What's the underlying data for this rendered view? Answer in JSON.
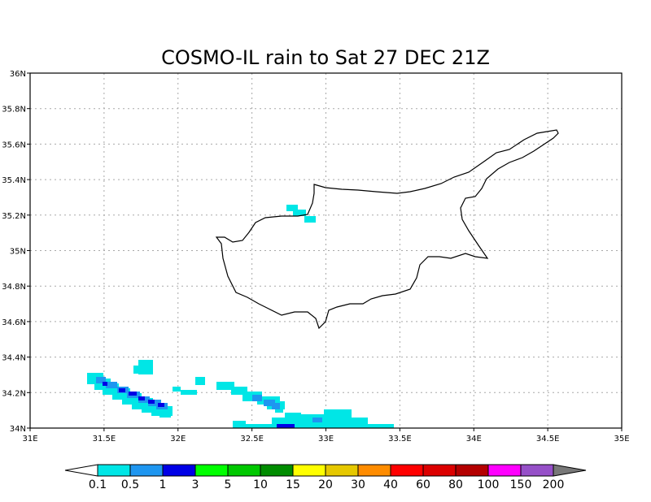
{
  "title": "COSMO-IL rain to Sat 27 DEC 21Z",
  "map": {
    "lon_range": [
      31,
      35
    ],
    "lat_range": [
      34,
      36
    ],
    "x_ticks": [
      "31E",
      "31.5E",
      "32E",
      "32.5E",
      "33E",
      "33.5E",
      "34E",
      "34.5E",
      "35E"
    ],
    "y_ticks": [
      "34N",
      "34.2N",
      "34.4N",
      "34.6N",
      "34.8N",
      "35N",
      "35.2N",
      "35.4N",
      "35.6N",
      "35.8N",
      "36N"
    ],
    "grid": "dotted",
    "grid_color": "#a8a8a8"
  },
  "colorbar": {
    "labels": [
      "0.1",
      "0.5",
      "1",
      "3",
      "5",
      "10",
      "15",
      "20",
      "30",
      "40",
      "60",
      "80",
      "100",
      "150",
      "200"
    ],
    "colors": [
      "#00e6e6",
      "#1e96f0",
      "#0000e6",
      "#00ff00",
      "#00c800",
      "#008c00",
      "#ffff00",
      "#e6c800",
      "#ff8c00",
      "#ff0000",
      "#dc0000",
      "#b40000",
      "#ff00ff",
      "#9650c8"
    ],
    "under_color": "#ffffff",
    "over_color": "#787878"
  },
  "precip_colors": {
    "light": "#00e6e6",
    "mid": "#1e96f0",
    "heavy": "#0000e6"
  }
}
